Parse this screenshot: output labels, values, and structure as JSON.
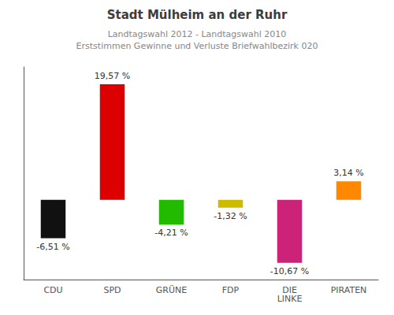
{
  "chart_data": {
    "type": "bar",
    "title": "Stadt Mülheim an der Ruhr",
    "subtitle": "Landtagswahl 2012 - Landtagswahl 2010\nErststimmen Gewinne und Verluste Briefwahlbezirk 020",
    "categories": [
      "CDU",
      "SPD",
      "GRÜNE",
      "FDP",
      "DIE\nLINKE",
      "PIRATEN"
    ],
    "values": [
      -6.51,
      19.57,
      -4.21,
      -1.32,
      -10.67,
      3.14
    ],
    "value_labels": [
      "-6,51 %",
      "19,57 %",
      "-4,21 %",
      "-1,32 %",
      "-10,67 %",
      "3,14 %"
    ],
    "colors": [
      "#111111",
      "#dd0000",
      "#22bb00",
      "#ccbb00",
      "#cc2277",
      "#ff8800"
    ],
    "ylim": [
      -13.5,
      22.5
    ],
    "grid": false,
    "data_labels": true,
    "tick_labels": "x"
  }
}
